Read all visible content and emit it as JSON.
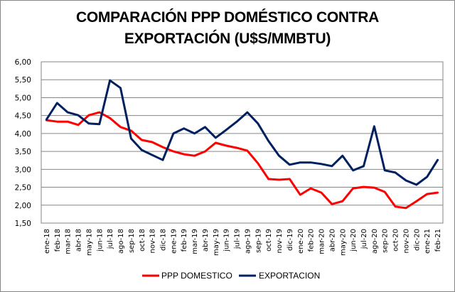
{
  "chart_data": {
    "type": "line",
    "title": "COMPARACIÓN PPP DOMÉSTICO CONTRA EXPORTACIÓN (U$S/MMBTU)",
    "title_lines": [
      "COMPARACIÓN PPP DOMÉSTICO CONTRA",
      "EXPORTACIÓN (U$S/MMBTU)"
    ],
    "xlabel": "",
    "ylabel": "",
    "ylim": [
      1.5,
      6.0
    ],
    "yticks": [
      1.5,
      2.0,
      2.5,
      3.0,
      3.5,
      4.0,
      4.5,
      5.0,
      5.5,
      6.0
    ],
    "ytick_labels": [
      "1,50",
      "2,00",
      "2,50",
      "3,00",
      "3,50",
      "4,00",
      "4,50",
      "5,00",
      "5,50",
      "6,00"
    ],
    "grid": "horizontal",
    "legend_position": "bottom",
    "categories": [
      "ene-18",
      "feb-18",
      "mar-18",
      "abr-18",
      "may-18",
      "jun-18",
      "jul-18",
      "ago-18",
      "sep-18",
      "oct-18",
      "nov-18",
      "dic-18",
      "ene-19",
      "feb-19",
      "mar-19",
      "abr-19",
      "may-19",
      "jun-19",
      "jul-19",
      "ago-19",
      "sep-19",
      "oct-19",
      "nov-19",
      "dic-19",
      "ene-20",
      "feb-20",
      "mar-20",
      "abr-20",
      "may-20",
      "jun-20",
      "jul-20",
      "ago-20",
      "sep-20",
      "oct-20",
      "nov-20",
      "dic-20",
      "ene-21",
      "feb-21"
    ],
    "series": [
      {
        "name": "PPP DOMESTICO",
        "color": "#ff0000",
        "values": [
          4.37,
          4.33,
          4.33,
          4.24,
          4.51,
          4.59,
          4.43,
          4.18,
          4.08,
          3.82,
          3.76,
          3.62,
          3.5,
          3.42,
          3.38,
          3.5,
          3.74,
          3.66,
          3.6,
          3.52,
          3.17,
          2.73,
          2.71,
          2.73,
          2.29,
          2.47,
          2.35,
          2.03,
          2.11,
          2.47,
          2.51,
          2.49,
          2.37,
          1.96,
          1.92,
          2.11,
          2.31,
          2.35
        ]
      },
      {
        "name": "EXPORTACION",
        "color": "#002060",
        "values": [
          4.39,
          4.85,
          4.59,
          4.51,
          4.28,
          4.26,
          5.48,
          5.27,
          3.86,
          3.54,
          3.4,
          3.26,
          4.0,
          4.14,
          4.0,
          4.18,
          3.88,
          4.1,
          4.33,
          4.59,
          4.28,
          3.79,
          3.38,
          3.13,
          3.19,
          3.19,
          3.15,
          3.09,
          3.38,
          2.97,
          3.09,
          4.2,
          2.97,
          2.91,
          2.69,
          2.57,
          2.79,
          3.26
        ]
      }
    ]
  }
}
